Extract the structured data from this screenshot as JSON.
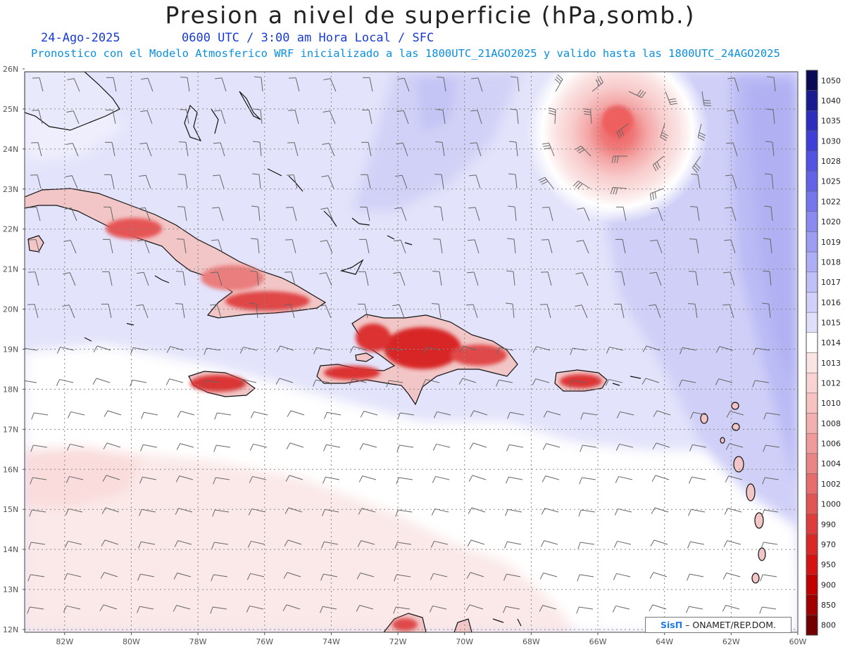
{
  "header": {
    "title": "Presion a nivel de superficie (hPa,somb.)",
    "date": "24-Ago-2025",
    "time_info": "0600 UTC / 3:00 am Hora Local / SFC",
    "model_info": "Pronostico con el Modelo Atmosferico WRF inicializado a las 1800UTC_21AGO2025 y valido hasta las  1800UTC_24AGO2025"
  },
  "map": {
    "lat_labels": [
      "26N",
      "25N",
      "24N",
      "23N",
      "22N",
      "21N",
      "20N",
      "19N",
      "18N",
      "17N",
      "16N",
      "15N",
      "14N",
      "13N",
      "12N"
    ],
    "lon_labels": [
      "82W",
      "80W",
      "78W",
      "76W",
      "74W",
      "72W",
      "70W",
      "68W",
      "66W",
      "64W",
      "62W",
      "60W"
    ],
    "lat_range": [
      12,
      26
    ],
    "lon_range": [
      -83.2,
      -60
    ],
    "features": {
      "low_pressure_center": {
        "lat": 24.8,
        "lon": -65.3
      }
    }
  },
  "colorbar": {
    "levels": [
      "1050",
      "1040",
      "1035",
      "1030",
      "1028",
      "1025",
      "1022",
      "1020",
      "1019",
      "1018",
      "1017",
      "1016",
      "1015",
      "1014",
      "1013",
      "1012",
      "1010",
      "1008",
      "1006",
      "1004",
      "1002",
      "1000",
      "990",
      "970",
      "950",
      "900",
      "850",
      "800"
    ],
    "colors": [
      "#0b0b55",
      "#1b1b90",
      "#2d2dbe",
      "#3f3fd8",
      "#5252e3",
      "#6363e8",
      "#7575ec",
      "#8a8af0",
      "#9d9df3",
      "#aeaef6",
      "#c0c0f8",
      "#d0d0fa",
      "#dfdffc",
      "#ffffff",
      "#fbe4e4",
      "#f9d3d3",
      "#f6c2c2",
      "#f3b0b0",
      "#ef9b9b",
      "#ea8585",
      "#e56d6d",
      "#e05555",
      "#dc3d3d",
      "#d82828",
      "#d41414",
      "#c00000",
      "#a00000",
      "#700000"
    ]
  },
  "credit": {
    "brand": "SisΠ",
    "text": "– ONAMET/REP.DOM."
  }
}
